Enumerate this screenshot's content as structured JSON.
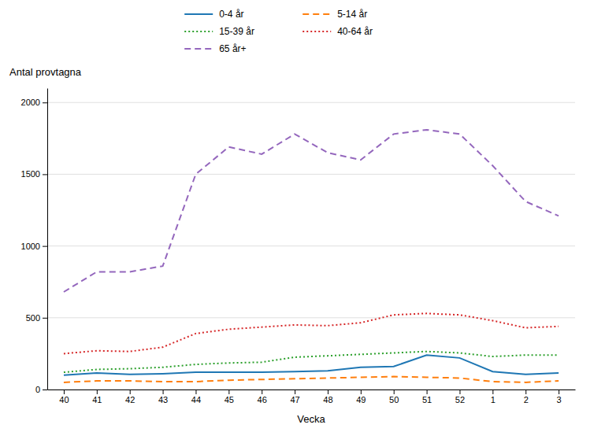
{
  "chart_data": {
    "type": "line",
    "xlabel": "Vecka",
    "ylabel": "Antal provtagna",
    "categories": [
      "40",
      "41",
      "42",
      "43",
      "44",
      "45",
      "46",
      "47",
      "48",
      "49",
      "50",
      "51",
      "52",
      "1",
      "2",
      "3"
    ],
    "series": [
      {
        "name": "0-4 år",
        "line_style": "solid",
        "values": [
          100,
          115,
          105,
          110,
          120,
          120,
          120,
          125,
          130,
          155,
          160,
          240,
          220,
          125,
          105,
          115
        ]
      },
      {
        "name": "5-14 år",
        "line_style": "dashed",
        "values": [
          50,
          60,
          60,
          55,
          55,
          65,
          70,
          75,
          80,
          85,
          90,
          85,
          80,
          55,
          50,
          60
        ]
      },
      {
        "name": "15-39 år",
        "line_style": "dotted",
        "values": [
          120,
          140,
          145,
          155,
          175,
          185,
          190,
          225,
          235,
          245,
          255,
          265,
          255,
          230,
          240,
          240
        ]
      },
      {
        "name": "40-64 år",
        "line_style": "dotted",
        "values": [
          250,
          270,
          265,
          295,
          390,
          420,
          435,
          450,
          445,
          465,
          520,
          530,
          520,
          480,
          430,
          440
        ]
      },
      {
        "name": "65 år+",
        "line_style": "dashed",
        "values": [
          680,
          820,
          820,
          860,
          1500,
          1690,
          1640,
          1780,
          1650,
          1600,
          1780,
          1810,
          1780,
          1560,
          1310,
          1210
        ]
      }
    ],
    "ylim": [
      0,
      2100
    ],
    "yticks": [
      0,
      500,
      1000,
      1500,
      2000
    ],
    "grid": true,
    "legend": "top"
  }
}
